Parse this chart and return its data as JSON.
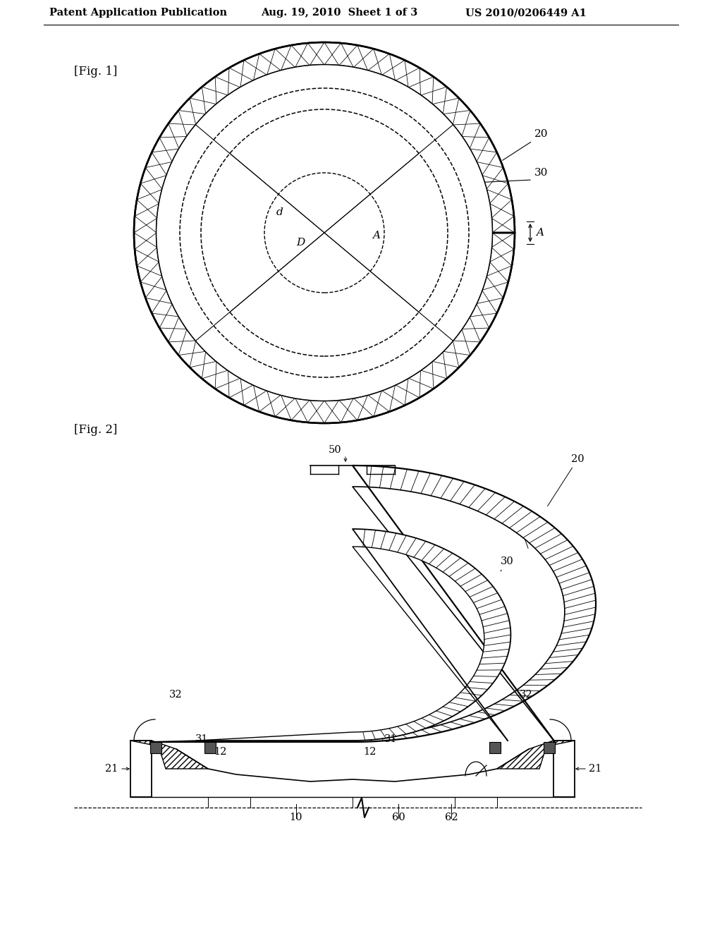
{
  "bg_color": "#ffffff",
  "header_text": "Patent Application Publication",
  "header_date": "Aug. 19, 2010  Sheet 1 of 3",
  "header_patent": "US 2010/0206449 A1",
  "fig1_label": "[Fig. 1]",
  "fig2_label": "[Fig. 2]",
  "line_color": "#000000"
}
